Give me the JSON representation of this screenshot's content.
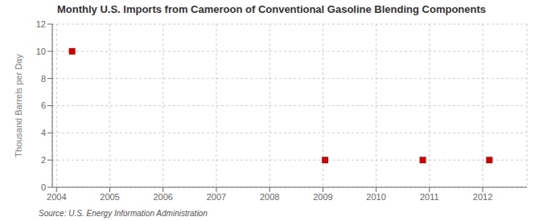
{
  "chart_data": {
    "type": "scatter",
    "title": "Monthly U.S. Imports from Cameroon of Conventional Gasoline Blending Components",
    "ylabel": "Thousand Barrels per Day",
    "annotations": [
      "Source: U.S. Energy Information Administration"
    ],
    "x": [
      2004.2916666666667,
      2009.0416666666667,
      2010.875,
      2012.125
    ],
    "values": [
      10,
      2,
      2,
      2
    ],
    "color": "#cc0000",
    "marker": "square",
    "xlim": [
      2003.92,
      2012.83
    ],
    "xticks": [
      2004,
      2005,
      2006,
      2007,
      2008,
      2009,
      2010,
      2011,
      2012
    ],
    "ylim": [
      0,
      12
    ],
    "yticks": [
      0,
      2,
      4,
      6,
      8,
      10,
      12
    ],
    "grid": true
  }
}
